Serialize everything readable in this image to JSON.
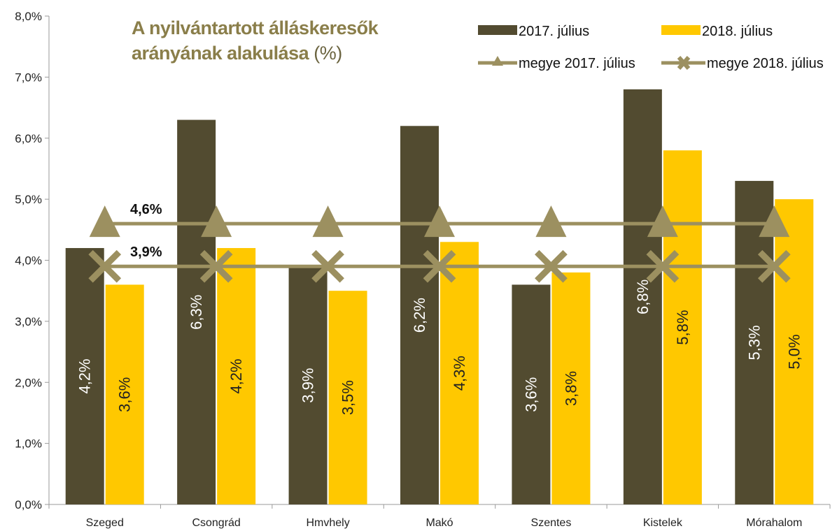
{
  "chart_data": {
    "type": "bar",
    "title_line1": "A nyilvántartott álláskeresők",
    "title_line2": "arányának alakulása",
    "title_unit": "(%)",
    "categories": [
      "Szeged",
      "Csongrád",
      "Hmvhely",
      "Makó",
      "Szentes",
      "Kistelek",
      "Mórahalom"
    ],
    "series": [
      {
        "name": "2017. július",
        "values": [
          4.2,
          6.3,
          3.9,
          6.2,
          3.6,
          6.8,
          5.3
        ],
        "labels": [
          "4,2%",
          "6,3%",
          "3,9%",
          "6,2%",
          "3,6%",
          "6,8%",
          "5,3%"
        ],
        "color": "#524b30"
      },
      {
        "name": "2018. július",
        "values": [
          3.6,
          4.2,
          3.5,
          4.3,
          3.8,
          5.8,
          5.0
        ],
        "labels": [
          "3,6%",
          "4,2%",
          "3,5%",
          "4,3%",
          "3,8%",
          "5,8%",
          "5,0%"
        ],
        "color": "#ffc800"
      }
    ],
    "lines": [
      {
        "name": "megye 2017. július",
        "value": 4.6,
        "label": "4,6%",
        "marker": "triangle",
        "color": "#9c9060"
      },
      {
        "name": "megye 2018. július",
        "value": 3.9,
        "label": "3,9%",
        "marker": "x",
        "color": "#9c9060"
      }
    ],
    "ylim": [
      0,
      8
    ],
    "yticks": [
      "0,0%",
      "1,0%",
      "2,0%",
      "3,0%",
      "4,0%",
      "5,0%",
      "6,0%",
      "7,0%",
      "8,0%"
    ],
    "grid": false,
    "legend_position": "top-right"
  }
}
